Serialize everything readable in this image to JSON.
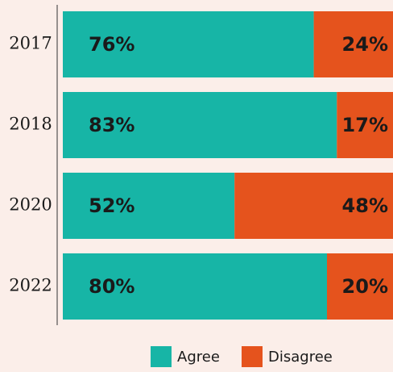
{
  "chart_data": {
    "type": "stacked_barh",
    "categories": [
      "2017",
      "2018",
      "2020",
      "2022"
    ],
    "series": [
      {
        "name": "Agree",
        "color": "#17b5a6",
        "values": [
          76,
          83,
          52,
          80
        ],
        "value_labels": [
          "76%",
          "83%",
          "52%",
          "80%"
        ]
      },
      {
        "name": "Disagree",
        "color": "#e5531d",
        "values": [
          24,
          17,
          48,
          20
        ],
        "value_labels": [
          "24%",
          "17%",
          "48%",
          "20%"
        ]
      }
    ],
    "xlim": [
      0,
      100
    ],
    "legend": "bottom"
  }
}
